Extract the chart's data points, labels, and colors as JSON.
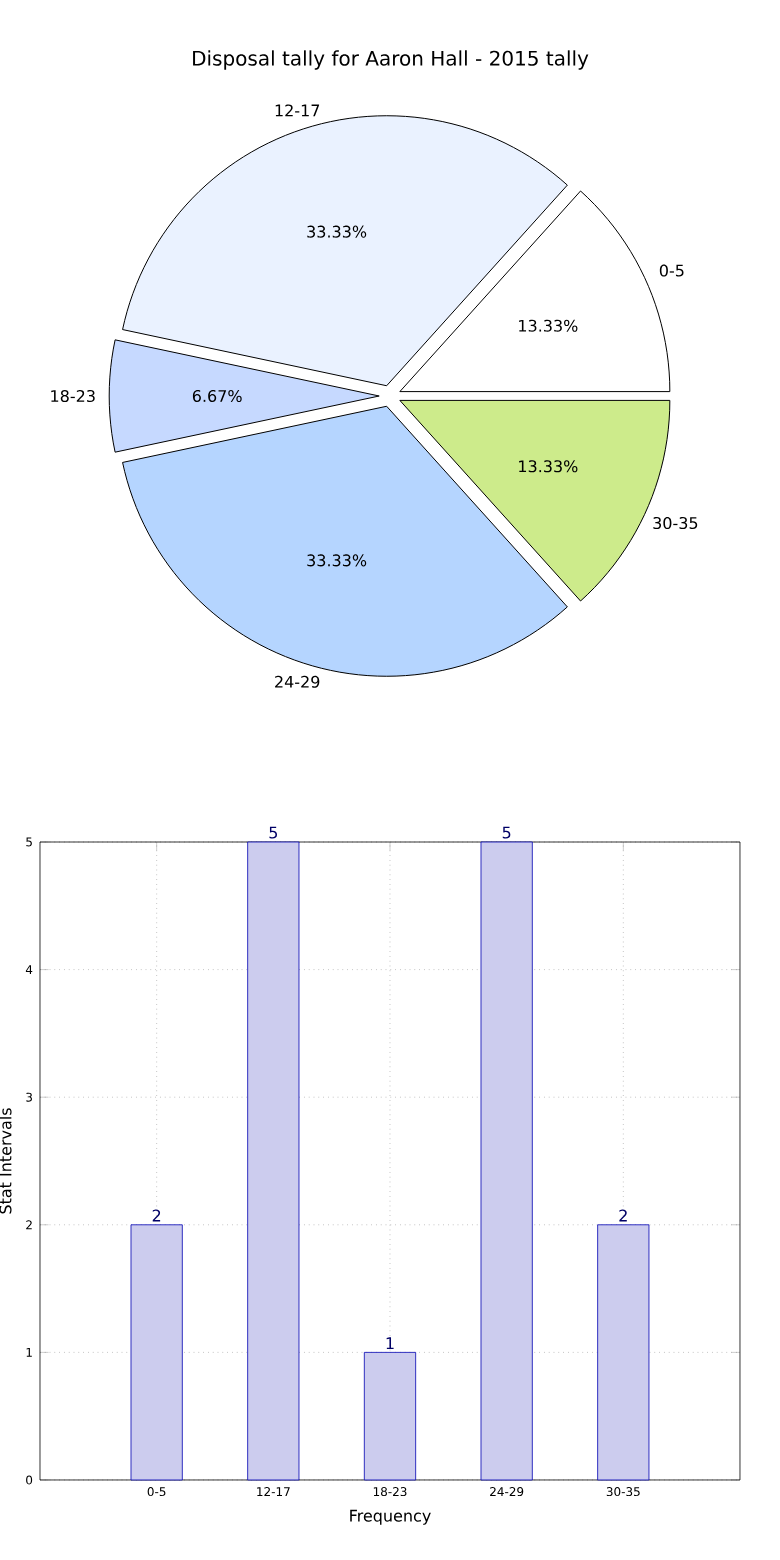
{
  "chart_data": [
    {
      "type": "pie",
      "title": "Disposal tally for Aaron Hall - 2015 tally",
      "categories": [
        "0-5",
        "12-17",
        "18-23",
        "24-29",
        "30-35"
      ],
      "values": [
        13.33,
        33.33,
        6.67,
        33.33,
        13.33
      ],
      "colors": [
        "#ffffff",
        "#eaf2ff",
        "#c6d9ff",
        "#b5d5ff",
        "#cdeb8b"
      ],
      "value_labels": [
        "13.33%",
        "33.33%",
        "6.67%",
        "33.33%",
        "13.33%"
      ]
    },
    {
      "type": "bar",
      "categories": [
        "0-5",
        "12-17",
        "18-23",
        "24-29",
        "30-35"
      ],
      "values": [
        2,
        5,
        1,
        5,
        2
      ],
      "color": "#ccccee",
      "ylim": [
        0,
        5
      ],
      "yticks": [
        0,
        1,
        2,
        3,
        4,
        5
      ],
      "grid": true,
      "data_labels": true,
      "xlabel": "Frequency",
      "ylabel": "Stat Intervals"
    }
  ]
}
